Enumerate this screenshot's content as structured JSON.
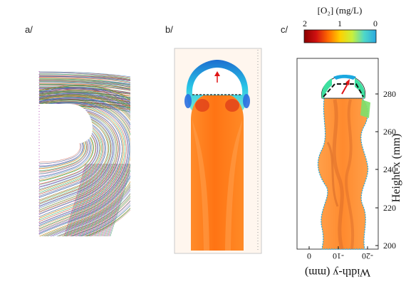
{
  "panels": {
    "a": {
      "label": "a/"
    },
    "b": {
      "label": "b/"
    },
    "c": {
      "label": "c/",
      "colorbar": {
        "title": "[O₂] (mg/L)",
        "ticks": [
          "2",
          "1",
          "0"
        ],
        "colors": [
          "#8b0000",
          "#d01010",
          "#ff6a00",
          "#ffd000",
          "#c8f03c",
          "#4fd8c8",
          "#2aa8e0"
        ]
      },
      "x_axis": {
        "title": "Width-y (mm)",
        "ticks": [
          "0",
          "-10",
          "-20"
        ]
      },
      "y_axis": {
        "title": "Height-x (mm)",
        "ticks": [
          "200",
          "220",
          "240",
          "260",
          "280"
        ]
      }
    }
  },
  "colors": {
    "field_orange": "#ff7a1a",
    "field_light": "#ffa047",
    "bubble_cyan": "#22b8e8",
    "bubble_green": "#6fe07a"
  }
}
